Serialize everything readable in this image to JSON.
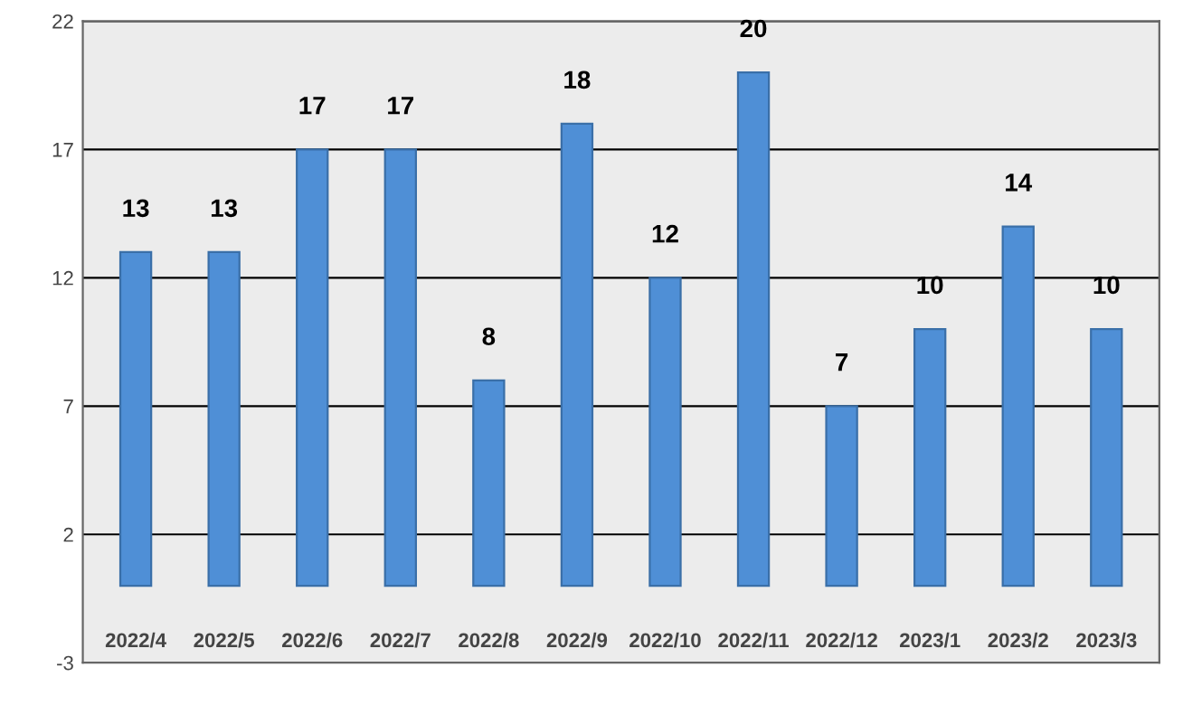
{
  "chart_data": {
    "type": "bar",
    "categories": [
      "2022/4",
      "2022/5",
      "2022/6",
      "2022/7",
      "2022/8",
      "2022/9",
      "2022/10",
      "2022/11",
      "2022/12",
      "2023/1",
      "2023/2",
      "2023/3"
    ],
    "values": [
      13,
      13,
      17,
      17,
      8,
      18,
      12,
      20,
      7,
      10,
      14,
      10
    ],
    "color": "#4f8fd6",
    "ylim": [
      -3,
      22
    ],
    "yticks": [
      -3,
      2,
      7,
      12,
      17,
      22
    ],
    "grid": "y",
    "data_labels": true
  }
}
